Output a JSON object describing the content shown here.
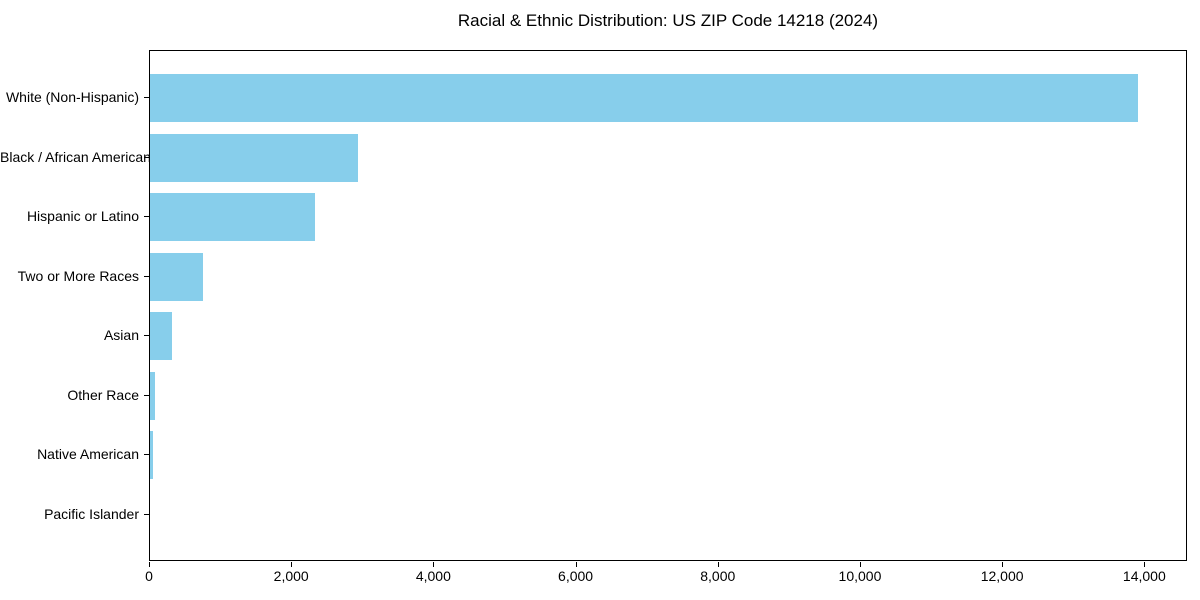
{
  "chart_data": {
    "type": "bar",
    "orientation": "horizontal",
    "title": "Racial & Ethnic Distribution: US ZIP Code 14218 (2024)",
    "categories": [
      "White (Non-Hispanic)",
      "Black / African American",
      "Hispanic or Latino",
      "Two or More Races",
      "Asian",
      "Other Race",
      "Native American",
      "Pacific Islander"
    ],
    "values": [
      13900,
      2925,
      2320,
      745,
      310,
      75,
      45,
      0
    ],
    "x_ticks": [
      {
        "value": 0,
        "label": "0"
      },
      {
        "value": 2000,
        "label": "2,000"
      },
      {
        "value": 4000,
        "label": "4,000"
      },
      {
        "value": 6000,
        "label": "6,000"
      },
      {
        "value": 8000,
        "label": "8,000"
      },
      {
        "value": 10000,
        "label": "10,000"
      },
      {
        "value": 12000,
        "label": "12,000"
      },
      {
        "value": 14000,
        "label": "14,000"
      },
      {
        "value": 14600,
        "label": ""
      }
    ],
    "xlabel": "",
    "ylabel": "",
    "xlim": [
      0,
      14600
    ],
    "grid": false,
    "legend": null,
    "bar_color": "#87CEEB",
    "axis_color": "#000000",
    "background_color": "#ffffff"
  }
}
